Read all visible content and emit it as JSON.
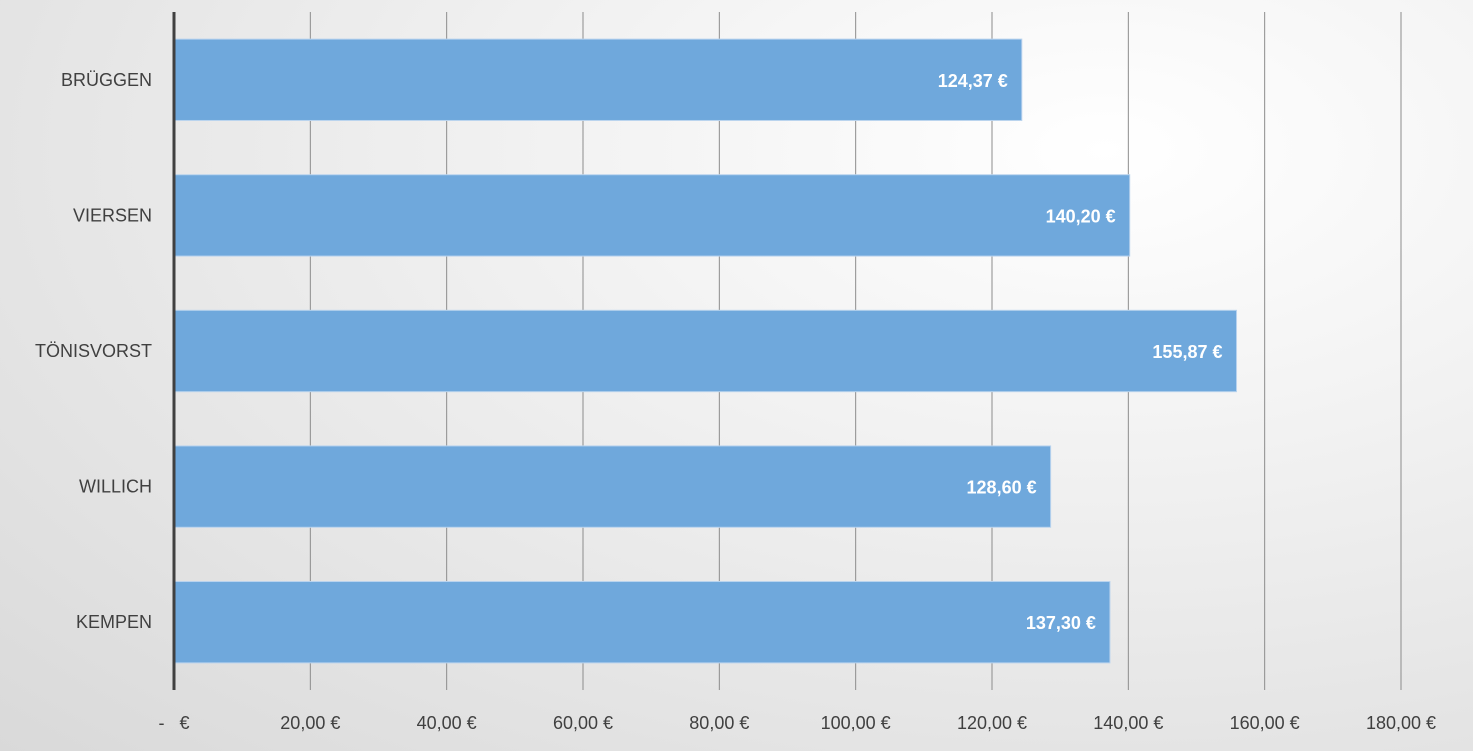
{
  "chart_data": {
    "type": "bar",
    "orientation": "horizontal",
    "categories": [
      "BRÜGGEN",
      "VIERSEN",
      "TÖNISVORST",
      "WILLICH",
      "KEMPEN"
    ],
    "values": [
      124.37,
      140.2,
      155.87,
      128.6,
      137.3
    ],
    "data_labels": [
      "124,37 €",
      "140,20 €",
      "155,87 €",
      "128,60 €",
      "137,30 €"
    ],
    "x_ticks": [
      0,
      20,
      40,
      60,
      80,
      100,
      120,
      140,
      160,
      180
    ],
    "x_tick_labels": [
      "-   €",
      "20,00 €",
      "40,00 €",
      "60,00 €",
      "80,00 €",
      "100,00 €",
      "120,00 €",
      "140,00 €",
      "160,00 €",
      "180,00 €"
    ],
    "xlim": [
      0,
      180
    ],
    "grid": true,
    "legend": "none",
    "bar_color": "#6fa8dc"
  }
}
